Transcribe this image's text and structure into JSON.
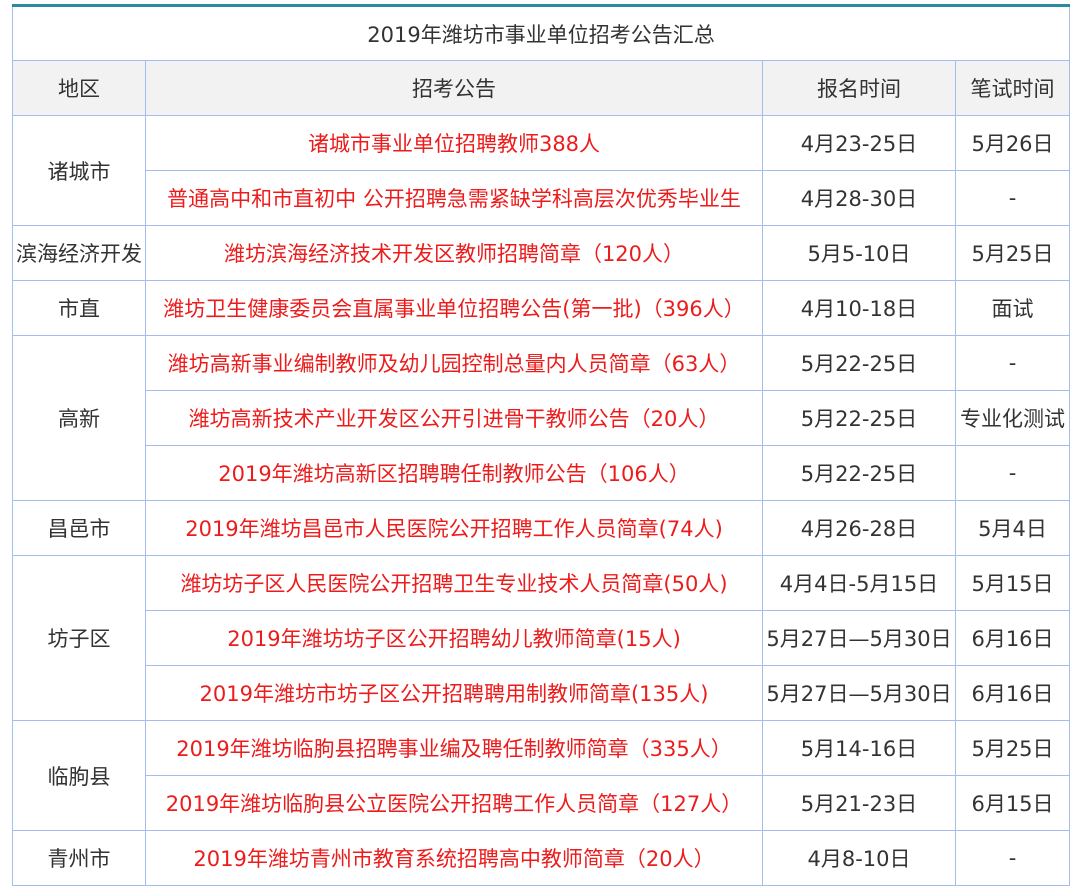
{
  "title": "2019年潍坊市事业单位招考公告汇总",
  "headers": [
    "地区",
    "招考公告",
    "报名时间",
    "笔试时间"
  ],
  "colors": {
    "announcement_text": "#ec1c1c",
    "border": "#a3bdf0",
    "header_bg": "#f2f2f2",
    "top_rule": "#2a8a9e"
  },
  "groups": [
    {
      "region": "诸城市",
      "rows": [
        {
          "announcement": "诸城市事业单位招聘教师388人",
          "registration": "4月23-25日",
          "exam": "5月26日"
        },
        {
          "announcement": "普通高中和市直初中 公开招聘急需紧缺学科高层次优秀毕业生",
          "registration": "4月28-30日",
          "exam": "-"
        }
      ]
    },
    {
      "region": "滨海经济开发",
      "rows": [
        {
          "announcement": "潍坊滨海经济技术开发区教师招聘简章（120人）",
          "registration": "5月5-10日",
          "exam": "5月25日"
        }
      ]
    },
    {
      "region": "市直",
      "rows": [
        {
          "announcement": "潍坊卫生健康委员会直属事业单位招聘公告(第一批)（396人）",
          "registration": "4月10-18日",
          "exam": "面试"
        }
      ]
    },
    {
      "region": "高新",
      "rows": [
        {
          "announcement": "潍坊高新事业编制教师及幼儿园控制总量内人员简章（63人）",
          "registration": "5月22-25日",
          "exam": "-"
        },
        {
          "announcement": "潍坊高新技术产业开发区公开引进骨干教师公告（20人）",
          "registration": "5月22-25日",
          "exam": "专业化测试"
        },
        {
          "announcement": "2019年潍坊高新区招聘聘任制教师公告（106人）",
          "registration": "5月22-25日",
          "exam": "-"
        }
      ]
    },
    {
      "region": "昌邑市",
      "rows": [
        {
          "announcement": "2019年潍坊昌邑市人民医院公开招聘工作人员简章(74人)",
          "registration": "4月26-28日",
          "exam": "5月4日"
        }
      ]
    },
    {
      "region": "坊子区",
      "rows": [
        {
          "announcement": "潍坊坊子区人民医院公开招聘卫生专业技术人员简章(50人)",
          "registration": "4月4日-5月15日",
          "exam": "5月15日"
        },
        {
          "announcement": "2019年潍坊坊子区公开招聘幼儿教师简章(15人)",
          "registration": "5月27日—5月30日",
          "exam": "6月16日"
        },
        {
          "announcement": "2019年潍坊市坊子区公开招聘聘用制教师简章(135人)",
          "registration": "5月27日—5月30日",
          "exam": "6月16日"
        }
      ]
    },
    {
      "region": "临朐县",
      "rows": [
        {
          "announcement": "2019年潍坊临朐县招聘事业编及聘任制教师简章（335人）",
          "registration": "5月14-16日",
          "exam": "5月25日"
        },
        {
          "announcement": "2019年潍坊临朐县公立医院公开招聘工作人员简章（127人）",
          "registration": "5月21-23日",
          "exam": "6月15日"
        }
      ]
    },
    {
      "region": "青州市",
      "rows": [
        {
          "announcement": "2019年潍坊青州市教育系统招聘高中教师简章（20人）",
          "registration": "4月8-10日",
          "exam": "-"
        }
      ]
    }
  ]
}
